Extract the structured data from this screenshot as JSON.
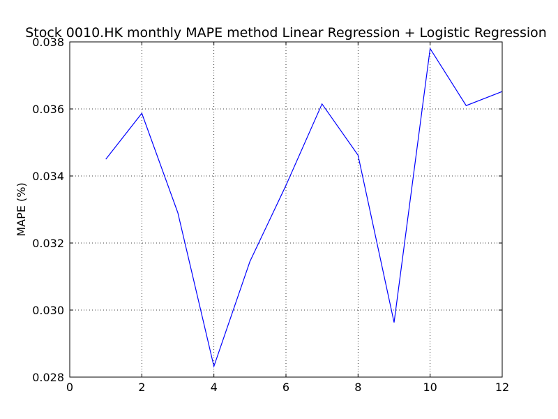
{
  "chart_data": {
    "type": "line",
    "title": "Stock 0010.HK monthly MAPE method Linear Regression + Logistic Regression",
    "xlabel": "",
    "ylabel": "MAPE (%)",
    "xlim": [
      0,
      12
    ],
    "ylim": [
      0.028,
      0.038
    ],
    "xticks": [
      0,
      2,
      4,
      6,
      8,
      10,
      12
    ],
    "xtick_labels": [
      "0",
      "2",
      "4",
      "6",
      "8",
      "10",
      "12"
    ],
    "yticks": [
      0.028,
      0.03,
      0.032,
      0.034,
      0.036,
      0.038
    ],
    "ytick_labels": [
      "0.028",
      "0.030",
      "0.032",
      "0.034",
      "0.036",
      "0.038"
    ],
    "grid": true,
    "series": [
      {
        "color": "#0000ff",
        "x": [
          1,
          2,
          3,
          4,
          5,
          6,
          7,
          8,
          9,
          10,
          11,
          12
        ],
        "y": [
          0.0345,
          0.03587,
          0.0329,
          0.02832,
          0.03145,
          0.03372,
          0.03615,
          0.03462,
          0.02963,
          0.0378,
          0.0361,
          0.03652
        ]
      }
    ]
  }
}
